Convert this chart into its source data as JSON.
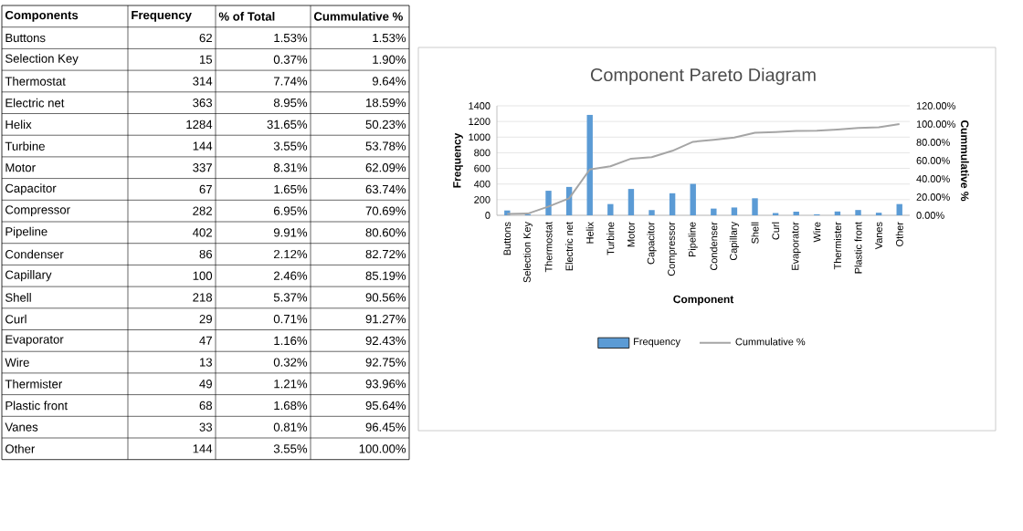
{
  "chart_data": [
    {
      "type": "other",
      "annotations": [
        "Components"
      ],
      "categories": [
        "Buttons",
        "Selection Key",
        "Thermostat",
        "Electric net",
        "Helix",
        "Turbine",
        "Motor",
        "Capacitor",
        "Compressor",
        "Pipeline",
        "Condenser",
        "Capillary",
        "Shell",
        "Curl",
        "Evaporator",
        "Wire",
        "Thermister",
        "Plastic front",
        "Vanes",
        "Other"
      ],
      "series": [
        {
          "name": "Frequency",
          "values": [
            62,
            15,
            314,
            363,
            1284,
            144,
            337,
            67,
            282,
            402,
            86,
            100,
            218,
            29,
            47,
            13,
            49,
            68,
            33,
            144
          ],
          "value_labels": [
            "62",
            "15",
            "314",
            "363",
            "1284",
            "144",
            "337",
            "67",
            "282",
            "402",
            "86",
            "100",
            "218",
            "29",
            "47",
            "13",
            "49",
            "68",
            "33",
            "144"
          ]
        },
        {
          "name": "% of Total",
          "values": [
            1.53,
            0.37,
            7.74,
            8.95,
            31.65,
            3.55,
            8.31,
            1.65,
            6.95,
            9.91,
            2.12,
            2.46,
            5.37,
            0.71,
            1.16,
            0.32,
            1.21,
            1.68,
            0.81,
            3.55
          ],
          "value_labels": [
            "1.53%",
            "0.37%",
            "7.74%",
            "8.95%",
            "31.65%",
            "3.55%",
            "8.31%",
            "1.65%",
            "6.95%",
            "9.91%",
            "2.12%",
            "2.46%",
            "5.37%",
            "0.71%",
            "1.16%",
            "0.32%",
            "1.21%",
            "1.68%",
            "0.81%",
            "3.55%"
          ]
        },
        {
          "name": "Cummulative %",
          "values": [
            1.53,
            1.9,
            9.64,
            18.59,
            50.23,
            53.78,
            62.09,
            63.74,
            70.69,
            80.6,
            82.72,
            85.19,
            90.56,
            91.27,
            92.43,
            92.75,
            93.96,
            95.64,
            96.45,
            100.0
          ],
          "value_labels": [
            "1.53%",
            "1.90%",
            "9.64%",
            "18.59%",
            "50.23%",
            "53.78%",
            "62.09%",
            "63.74%",
            "70.69%",
            "80.60%",
            "82.72%",
            "85.19%",
            "90.56%",
            "91.27%",
            "92.43%",
            "92.75%",
            "93.96%",
            "95.64%",
            "96.45%",
            "100.00%"
          ]
        }
      ]
    },
    {
      "type": "bar",
      "title": "Component Pareto Diagram",
      "xlabel": "Component",
      "ylabel": "Frequency",
      "y2label": "Cummulative %",
      "categories": [
        "Buttons",
        "Selection Key",
        "Thermostat",
        "Electric net",
        "Helix",
        "Turbine",
        "Motor",
        "Capacitor",
        "Compressor",
        "Pipeline",
        "Condenser",
        "Capillary",
        "Shell",
        "Curl",
        "Evaporator",
        "Wire",
        "Thermister",
        "Plastic front",
        "Vanes",
        "Other"
      ],
      "series": [
        {
          "name": "Frequency",
          "type": "bar",
          "axis": "y",
          "color": "#5b9bd5",
          "values": [
            62,
            15,
            314,
            363,
            1284,
            144,
            337,
            67,
            282,
            402,
            86,
            100,
            218,
            29,
            47,
            13,
            49,
            68,
            33,
            144
          ]
        },
        {
          "name": "Cummulative %",
          "type": "line",
          "axis": "y2",
          "color": "#a5a5a5",
          "values": [
            1.53,
            1.9,
            9.64,
            18.59,
            50.23,
            53.78,
            62.09,
            63.74,
            70.69,
            80.6,
            82.72,
            85.19,
            90.56,
            91.27,
            92.43,
            92.75,
            93.96,
            95.64,
            96.45,
            100.0
          ]
        }
      ],
      "ylim": [
        0,
        1400
      ],
      "yticks": [
        0,
        200,
        400,
        600,
        800,
        1000,
        1200,
        1400
      ],
      "y2lim": [
        0,
        120
      ],
      "y2ticks": [
        {
          "value": 0,
          "label": "0.00%"
        },
        {
          "value": 20,
          "label": "20.00%"
        },
        {
          "value": 40,
          "label": "40.00%"
        },
        {
          "value": 60,
          "label": "60.00%"
        },
        {
          "value": 80,
          "label": "80.00%"
        },
        {
          "value": 100,
          "label": "100.00%"
        },
        {
          "value": 120,
          "label": "120.00%"
        }
      ],
      "grid": "y",
      "legend": "bottom"
    }
  ]
}
